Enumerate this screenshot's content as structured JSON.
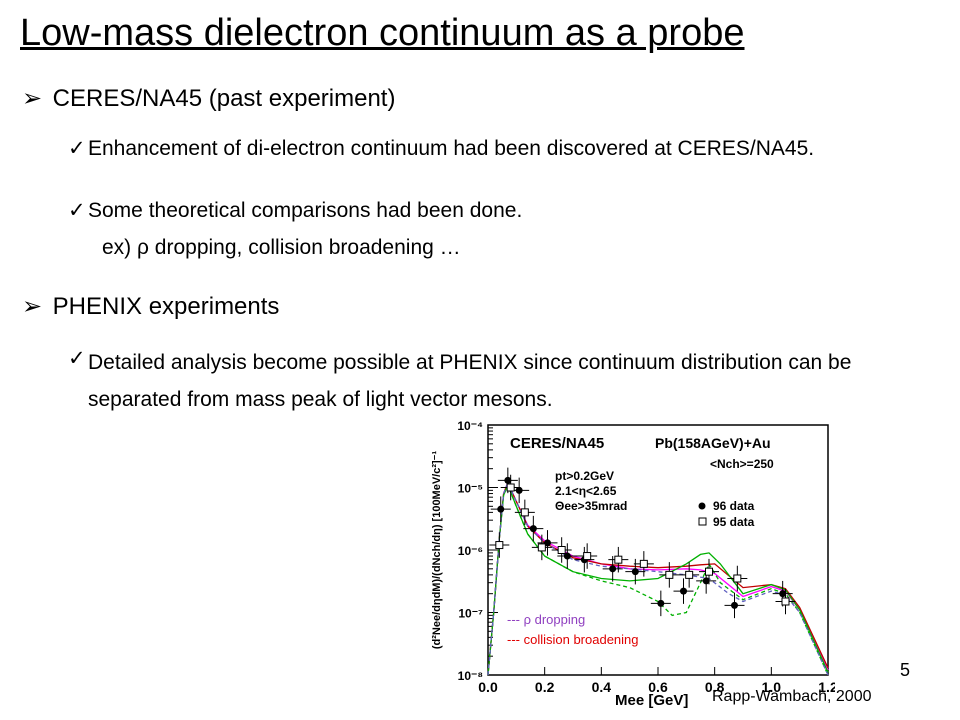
{
  "slide": {
    "title": "Low-mass dielectron continuum as a probe",
    "bullets": [
      {
        "arrow": "➢",
        "heading": "CERES/NA45 (past experiment)",
        "items": [
          {
            "check": "✓",
            "text": "Enhancement of di-electron continuum had been discovered at CERES/NA45."
          },
          {
            "check": "✓",
            "text": "Some theoretical comparisons had been done."
          }
        ],
        "example": "ex)   ρ dropping, collision broadening …"
      },
      {
        "arrow": "➢",
        "heading": "PHENIX experiments",
        "items": [
          {
            "check": "✓",
            "text": "Detailed analysis become possible at PHENIX since continuum distribution can be separated from mass peak of light vector mesons."
          }
        ]
      }
    ],
    "page_number": "5",
    "citation": "Rapp-Wambach, 2000"
  },
  "chart_data": {
    "type": "scatter",
    "title": "CERES/NA45",
    "system": "Pb(158AGeV)+Au",
    "multiplicity": "<Nch>=250",
    "cuts": [
      "pt>0.2GeV",
      "2.1<η<2.65",
      "Θee>35mrad"
    ],
    "xlabel": "Mee [GeV]",
    "ylabel": "(d²Nee/dηdM)/(dNch/dη) [100MeV/c²]⁻¹",
    "xlim": [
      0.0,
      1.2
    ],
    "ylim": [
      1e-08,
      0.0001
    ],
    "ylog": true,
    "x_ticks": [
      "0.0",
      "0.2",
      "0.4",
      "0.6",
      "0.8",
      "1.0",
      "1.2"
    ],
    "y_ticks": [
      "10⁻⁴",
      "10⁻⁵",
      "10⁻⁶",
      "10⁻⁷",
      "10⁻⁸"
    ],
    "y_tick_values": [
      0.0001,
      1e-05,
      1e-06,
      1e-07,
      1e-08
    ],
    "series": [
      {
        "name": "96 data",
        "marker": "filled-circle",
        "x": [
          0.045,
          0.07,
          0.11,
          0.16,
          0.21,
          0.28,
          0.34,
          0.44,
          0.52,
          0.61,
          0.69,
          0.77,
          0.87,
          1.04
        ],
        "y": [
          4.5e-06,
          1.3e-05,
          9e-06,
          2.2e-06,
          1.3e-06,
          8e-07,
          7e-07,
          5e-07,
          4.5e-07,
          1.4e-07,
          2.2e-07,
          3.2e-07,
          1.3e-07,
          2e-07
        ]
      },
      {
        "name": "95 data",
        "marker": "open-square",
        "x": [
          0.04,
          0.08,
          0.13,
          0.19,
          0.26,
          0.35,
          0.46,
          0.55,
          0.64,
          0.71,
          0.78,
          0.88,
          1.05
        ],
        "y": [
          1.2e-06,
          1e-05,
          4e-06,
          1.1e-06,
          1e-06,
          8e-07,
          7e-07,
          6e-07,
          4e-07,
          4e-07,
          4.5e-07,
          3.5e-07,
          1.5e-07
        ]
      }
    ],
    "curves": [
      {
        "color": "#ff00ff",
        "x": [
          0.0,
          0.02,
          0.04,
          0.055,
          0.07,
          0.1,
          0.14,
          0.2,
          0.3,
          0.4,
          0.5,
          0.6,
          0.7,
          0.75,
          0.8,
          0.9,
          1.0,
          1.05,
          1.1,
          1.2
        ],
        "y": [
          1e-08,
          1e-07,
          1.5e-06,
          8e-06,
          1.2e-05,
          6e-06,
          2.5e-06,
          1.4e-06,
          8e-07,
          6e-07,
          5e-07,
          4.8e-07,
          5e-07,
          4.8e-07,
          4.2e-07,
          1.8e-07,
          2.6e-07,
          2.2e-07,
          1.1e-07,
          1.2e-08
        ]
      },
      {
        "color": "#c00000",
        "x": [
          0.0,
          0.02,
          0.04,
          0.055,
          0.07,
          0.1,
          0.14,
          0.2,
          0.3,
          0.4,
          0.5,
          0.6,
          0.7,
          0.75,
          0.8,
          0.9,
          1.0,
          1.05,
          1.1,
          1.2
        ],
        "y": [
          1e-08,
          1e-07,
          1.5e-06,
          8e-06,
          1.2e-05,
          6e-06,
          2.4e-06,
          1.3e-06,
          7.5e-07,
          6e-07,
          5.5e-07,
          5.2e-07,
          5.5e-07,
          5.8e-07,
          6e-07,
          2.5e-07,
          2.8e-07,
          2.4e-07,
          1.2e-07,
          1.3e-08
        ]
      },
      {
        "color": "#00b000",
        "x": [
          0.0,
          0.02,
          0.04,
          0.055,
          0.07,
          0.1,
          0.14,
          0.2,
          0.3,
          0.4,
          0.5,
          0.6,
          0.7,
          0.75,
          0.78,
          0.82,
          0.9,
          1.0,
          1.05,
          1.1,
          1.2
        ],
        "y": [
          1e-08,
          1e-07,
          1.5e-06,
          7.5e-06,
          1.1e-05,
          5e-06,
          1.8e-06,
          8e-07,
          4.5e-07,
          3.5e-07,
          3.2e-07,
          3.5e-07,
          6e-07,
          8.5e-07,
          9e-07,
          6e-07,
          2e-07,
          2.8e-07,
          2.3e-07,
          1.1e-07,
          1.1e-08
        ]
      },
      {
        "color": "#00b000",
        "dash": true,
        "x": [
          0.0,
          0.02,
          0.04,
          0.055,
          0.07,
          0.1,
          0.14,
          0.2,
          0.3,
          0.4,
          0.5,
          0.6,
          0.65,
          0.7,
          0.75,
          0.78,
          0.82,
          0.9,
          1.0,
          1.05,
          1.1,
          1.2
        ],
        "y": [
          1e-08,
          1e-07,
          1.5e-06,
          7.5e-06,
          1.1e-05,
          5e-06,
          1.8e-06,
          8e-07,
          4.5e-07,
          3.2e-07,
          2.5e-07,
          1.5e-07,
          9e-08,
          1e-07,
          3e-07,
          6e-07,
          3e-07,
          1.6e-07,
          2.4e-07,
          2e-07,
          1e-07,
          1e-08
        ]
      },
      {
        "color": "#6060c0",
        "dash": true,
        "x": [
          0.0,
          0.02,
          0.04,
          0.055,
          0.07,
          0.1,
          0.14,
          0.2,
          0.3,
          0.4,
          0.5,
          0.6,
          0.7,
          0.78,
          0.85,
          0.9,
          1.0,
          1.05,
          1.1,
          1.2
        ],
        "y": [
          1e-08,
          1e-07,
          1.5e-06,
          8e-06,
          1.2e-05,
          6e-06,
          2.4e-06,
          1.3e-06,
          7e-07,
          5.5e-07,
          5e-07,
          4.5e-07,
          4e-07,
          3.5e-07,
          2e-07,
          1.5e-07,
          2.2e-07,
          1.9e-07,
          1e-07,
          1e-08
        ]
      }
    ],
    "legend": [
      {
        "label": "--- ρ dropping",
        "color": "#9040c0"
      },
      {
        "label": "--- collision broadening",
        "color": "#e00000"
      }
    ]
  }
}
